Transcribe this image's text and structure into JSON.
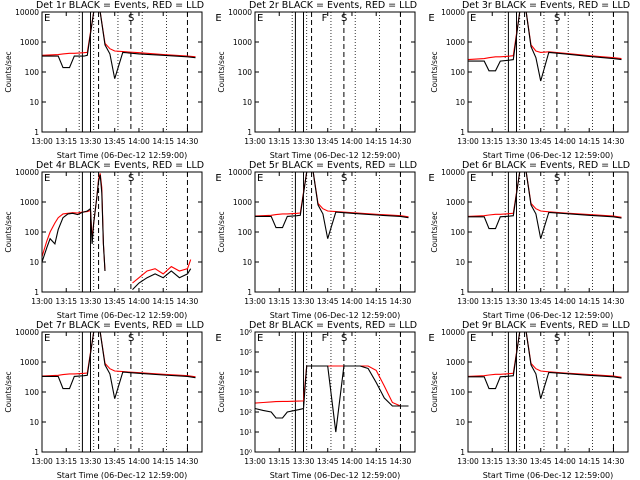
{
  "figure": {
    "x_label": "Start Time (06-Dec-12 12:59:00)",
    "y_label": "Counts/sec",
    "x_ticks": [
      "13:00",
      "13:15",
      "13:30",
      "13:45",
      "14:00",
      "14:15",
      "14:30"
    ],
    "colors": {
      "events": "#000000",
      "lld": "#ff0000",
      "frame": "#000000"
    }
  },
  "chart_data": [
    {
      "type": "line",
      "title": "Det 1r BLACK = Events, RED = LLD",
      "ylabel": "Counts/sec",
      "xlabel": "Start Time (06-Dec-12 12:59:00)",
      "y_scale": "log",
      "ylim": [
        1,
        10000
      ],
      "y_ticks": [
        "1",
        "10",
        "100",
        "1000",
        "10000"
      ],
      "x": [
        "13:00",
        "13:10",
        "13:13",
        "13:17",
        "13:20",
        "13:26",
        "13:28",
        "13:32",
        "13:36",
        "13:39",
        "13:42",
        "13:45",
        "13:50",
        "14:00",
        "14:15",
        "14:30",
        "14:35"
      ],
      "series": [
        {
          "name": "Events",
          "values": [
            340,
            340,
            140,
            140,
            340,
            340,
            360,
            10000,
            10000,
            800,
            400,
            60,
            450,
            400,
            360,
            320,
            300
          ]
        },
        {
          "name": "LLD",
          "values": [
            360,
            380,
            400,
            420,
            420,
            440,
            450,
            10000,
            10000,
            900,
            600,
            500,
            480,
            440,
            380,
            340,
            320
          ]
        }
      ],
      "markers": [
        "E",
        "S",
        "E"
      ]
    },
    {
      "type": "line",
      "title": "Det 2r BLACK = Events, RED = LLD",
      "ylabel": "Counts/sec",
      "xlabel": "Start Time (06-Dec-12 12:59:00)",
      "y_scale": "log",
      "ylim": [
        1,
        10000
      ],
      "y_ticks": [
        "1",
        "10",
        "100",
        "1000",
        "10000"
      ],
      "x": [],
      "series": [],
      "markers": [
        "E",
        "F",
        "S",
        "E"
      ]
    },
    {
      "type": "line",
      "title": "Det 3r BLACK = Events, RED = LLD",
      "ylabel": "Counts/sec",
      "xlabel": "Start Time (06-Dec-12 12:59:00)",
      "y_scale": "log",
      "ylim": [
        1,
        10000
      ],
      "y_ticks": [
        "1",
        "10",
        "100",
        "1000",
        "10000"
      ],
      "x": [
        "13:00",
        "13:10",
        "13:13",
        "13:17",
        "13:20",
        "13:26",
        "13:28",
        "13:32",
        "13:36",
        "13:39",
        "13:42",
        "13:45",
        "13:50",
        "14:00",
        "14:15",
        "14:30",
        "14:35"
      ],
      "series": [
        {
          "name": "Events",
          "values": [
            230,
            230,
            110,
            110,
            230,
            250,
            260,
            10000,
            10000,
            700,
            300,
            50,
            450,
            400,
            330,
            280,
            260
          ]
        },
        {
          "name": "LLD",
          "values": [
            260,
            280,
            300,
            320,
            320,
            340,
            350,
            10000,
            10000,
            800,
            500,
            450,
            470,
            420,
            350,
            300,
            280
          ]
        }
      ],
      "markers": [
        "E",
        "S",
        "E"
      ]
    },
    {
      "type": "line",
      "title": "Det 4r BLACK = Events, RED = LLD",
      "ylabel": "Counts/sec",
      "xlabel": "Start Time (06-Dec-12 12:59:00)",
      "y_scale": "log",
      "ylim": [
        1,
        10000
      ],
      "y_ticks": [
        "1",
        "10",
        "100",
        "1000",
        "10000"
      ],
      "x": [
        "13:00",
        "13:03",
        "13:05",
        "13:08",
        "13:10",
        "13:13",
        "13:16",
        "13:19",
        "13:22",
        "13:25",
        "13:28",
        "13:30",
        "13:31",
        "13:32",
        "13:34",
        "13:35",
        "13:36",
        "13:37",
        "13:38",
        "13:39"
      ],
      "series": [
        {
          "name": "Events",
          "values": [
            10,
            30,
            60,
            40,
            120,
            300,
            400,
            420,
            380,
            450,
            500,
            600,
            40,
            200,
            1500,
            5000,
            8000,
            2000,
            40,
            5
          ]
        },
        {
          "name": "LLD",
          "values": [
            15,
            50,
            100,
            200,
            300,
            400,
            420,
            440,
            430,
            460,
            480,
            520,
            60,
            200,
            1500,
            6000,
            9000,
            3000,
            40,
            5
          ]
        },
        {
          "name": "Events (late)",
          "x": [
            "13:56",
            "14:00",
            "14:05",
            "14:10",
            "14:15",
            "14:20",
            "14:25",
            "14:30",
            "14:32"
          ],
          "values": [
            1.2,
            2,
            3,
            4,
            3,
            5,
            3,
            4,
            6
          ]
        },
        {
          "name": "LLD (late)",
          "x": [
            "13:56",
            "14:00",
            "14:05",
            "14:10",
            "14:15",
            "14:20",
            "14:25",
            "14:30",
            "14:32"
          ],
          "values": [
            2,
            3,
            5,
            6,
            4,
            7,
            5,
            6,
            12
          ]
        }
      ],
      "markers": [
        "E",
        "S",
        "E"
      ]
    },
    {
      "type": "line",
      "title": "Det 5r BLACK = Events, RED = LLD",
      "ylabel": "Counts/sec",
      "xlabel": "Start Time (06-Dec-12 12:59:00)",
      "y_scale": "log",
      "ylim": [
        1,
        10000
      ],
      "y_ticks": [
        "1",
        "10",
        "100",
        "1000",
        "10000"
      ],
      "x": [
        "13:00",
        "13:10",
        "13:13",
        "13:17",
        "13:20",
        "13:26",
        "13:28",
        "13:32",
        "13:36",
        "13:39",
        "13:42",
        "13:45",
        "13:50",
        "14:00",
        "14:15",
        "14:30",
        "14:35"
      ],
      "series": [
        {
          "name": "Events",
          "values": [
            330,
            330,
            140,
            140,
            330,
            350,
            360,
            10000,
            10000,
            800,
            400,
            60,
            460,
            420,
            370,
            330,
            300
          ]
        },
        {
          "name": "LLD",
          "values": [
            340,
            360,
            380,
            400,
            400,
            420,
            430,
            10000,
            10000,
            900,
            600,
            500,
            480,
            440,
            390,
            350,
            320
          ]
        }
      ],
      "markers": [
        "E",
        "S",
        "E"
      ]
    },
    {
      "type": "line",
      "title": "Det 6r BLACK = Events, RED = LLD",
      "ylabel": "Counts/sec",
      "xlabel": "Start Time (06-Dec-12 12:59:00)",
      "y_scale": "log",
      "ylim": [
        1,
        10000
      ],
      "y_ticks": [
        "1",
        "10",
        "100",
        "1000",
        "10000"
      ],
      "x": [
        "13:00",
        "13:10",
        "13:13",
        "13:17",
        "13:20",
        "13:26",
        "13:28",
        "13:32",
        "13:36",
        "13:39",
        "13:42",
        "13:45",
        "13:50",
        "14:00",
        "14:15",
        "14:30",
        "14:35"
      ],
      "series": [
        {
          "name": "Events",
          "values": [
            320,
            320,
            130,
            130,
            320,
            340,
            350,
            10000,
            10000,
            800,
            400,
            60,
            450,
            410,
            360,
            320,
            290
          ]
        },
        {
          "name": "LLD",
          "values": [
            330,
            350,
            370,
            390,
            390,
            410,
            420,
            10000,
            10000,
            900,
            600,
            500,
            470,
            430,
            380,
            340,
            310
          ]
        }
      ],
      "markers": [
        "E",
        "S",
        "E"
      ]
    },
    {
      "type": "line",
      "title": "Det 7r BLACK = Events, RED = LLD",
      "ylabel": "Counts/sec",
      "xlabel": "Start Time (06-Dec-12 12:59:00)",
      "y_scale": "log",
      "ylim": [
        1,
        10000
      ],
      "y_ticks": [
        "1",
        "10",
        "100",
        "1000",
        "10000"
      ],
      "x": [
        "13:00",
        "13:10",
        "13:13",
        "13:17",
        "13:20",
        "13:26",
        "13:28",
        "13:32",
        "13:36",
        "13:39",
        "13:42",
        "13:45",
        "13:50",
        "14:00",
        "14:15",
        "14:30",
        "14:35"
      ],
      "series": [
        {
          "name": "Events",
          "values": [
            330,
            330,
            130,
            130,
            330,
            350,
            360,
            10000,
            10000,
            800,
            400,
            60,
            460,
            420,
            370,
            330,
            300
          ]
        },
        {
          "name": "LLD",
          "values": [
            340,
            360,
            380,
            400,
            400,
            420,
            430,
            10000,
            10000,
            900,
            600,
            500,
            480,
            440,
            390,
            350,
            320
          ]
        }
      ],
      "markers": [
        "E",
        "S",
        "E"
      ]
    },
    {
      "type": "line",
      "title": "Det 8r BLACK = Events, RED = LLD",
      "ylabel": "Counts/sec",
      "xlabel": "Start Time (06-Dec-12 12:59:00)",
      "y_scale": "log",
      "ylim": [
        1,
        1000000
      ],
      "y_ticks": [
        "10⁰",
        "10¹",
        "10²",
        "10³",
        "10⁴",
        "10⁵",
        "10⁶"
      ],
      "x": [
        "13:00",
        "13:05",
        "13:10",
        "13:13",
        "13:17",
        "13:20",
        "13:27",
        "13:30",
        "13:32",
        "13:36",
        "13:40",
        "13:45",
        "13:50",
        "13:55",
        "14:00",
        "14:05",
        "14:10",
        "14:15",
        "14:20",
        "14:25",
        "14:30",
        "14:35"
      ],
      "series": [
        {
          "name": "Events",
          "values": [
            150,
            120,
            100,
            50,
            50,
            100,
            130,
            150,
            20000,
            20000,
            20000,
            20000,
            10,
            20000,
            20000,
            20000,
            15000,
            3000,
            500,
            200,
            200,
            200
          ]
        },
        {
          "name": "LLD",
          "values": [
            280,
            300,
            320,
            330,
            340,
            340,
            350,
            360,
            20000,
            20000,
            20000,
            20000,
            20000,
            20000,
            20000,
            20000,
            20000,
            12000,
            2000,
            300,
            200,
            200
          ]
        }
      ],
      "markers": [
        "E",
        "F",
        "S",
        "E"
      ]
    },
    {
      "type": "line",
      "title": "Det 9r BLACK = Events, RED = LLD",
      "ylabel": "Counts/sec",
      "xlabel": "Start Time (06-Dec-12 12:59:00)",
      "y_scale": "log",
      "ylim": [
        1,
        10000
      ],
      "y_ticks": [
        "1",
        "10",
        "100",
        "1000",
        "10000"
      ],
      "x": [
        "13:00",
        "13:10",
        "13:13",
        "13:17",
        "13:20",
        "13:26",
        "13:28",
        "13:32",
        "13:36",
        "13:39",
        "13:42",
        "13:45",
        "13:50",
        "14:00",
        "14:15",
        "14:30",
        "14:35"
      ],
      "series": [
        {
          "name": "Events",
          "values": [
            320,
            320,
            130,
            130,
            320,
            340,
            350,
            10000,
            10000,
            800,
            400,
            60,
            450,
            410,
            360,
            320,
            290
          ]
        },
        {
          "name": "LLD",
          "values": [
            330,
            350,
            370,
            390,
            390,
            410,
            420,
            10000,
            10000,
            900,
            600,
            500,
            470,
            430,
            380,
            340,
            310
          ]
        }
      ],
      "markers": [
        "E",
        "S",
        "E"
      ]
    }
  ]
}
